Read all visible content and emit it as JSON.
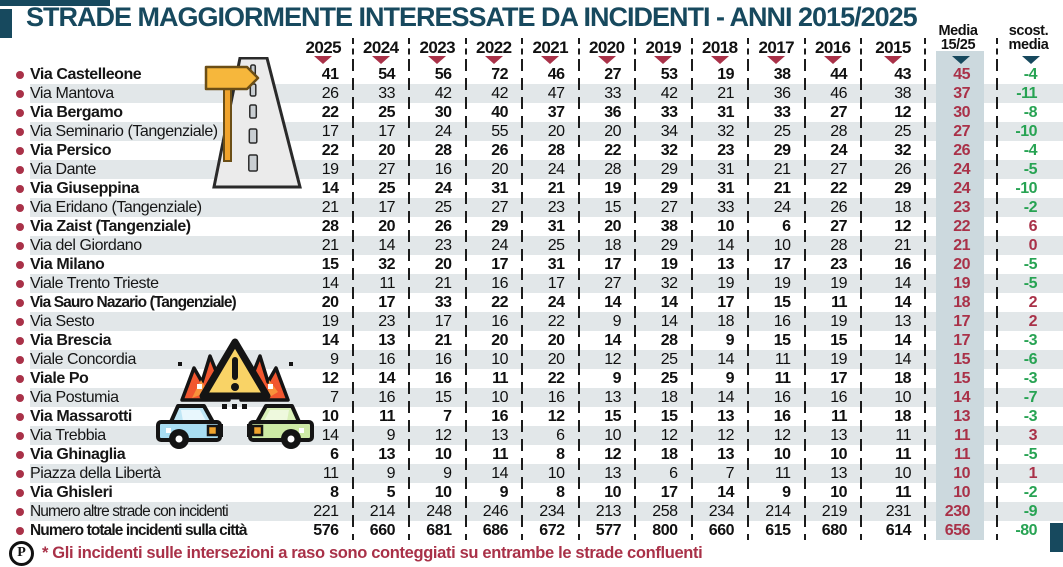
{
  "title": "STRADE MAGGIORMENTE INTERESSATE DA INCIDENTI - ANNI 2015/2025",
  "header": {
    "years": [
      "2025",
      "2024",
      "2023",
      "2022",
      "2021",
      "2020",
      "2019",
      "2018",
      "2017",
      "2016",
      "2015"
    ],
    "media_label": [
      "Media",
      "15/25"
    ],
    "scost_label": [
      "scost.",
      "media"
    ]
  },
  "footnote": {
    "icon": "P",
    "text": "* Gli incidenti sulle intersezioni a raso sono conteggiati su entrambe le strade confluenti"
  },
  "colors": {
    "navy": "#17495e",
    "crimson": "#a93148",
    "green": "#27a353",
    "row_alt": "#e2e7e9",
    "media_column_bg": "#ccd9de"
  },
  "chart_data": {
    "type": "table",
    "title": "STRADE MAGGIORMENTE INTERESSATE DA INCIDENTI - ANNI 2015/2025",
    "columns": [
      "2025",
      "2024",
      "2023",
      "2022",
      "2021",
      "2020",
      "2019",
      "2018",
      "2017",
      "2016",
      "2015",
      "Media 15/25",
      "scost. media"
    ],
    "rows": [
      {
        "name": "Via Castelleone",
        "bold": true,
        "values": [
          41,
          54,
          56,
          72,
          46,
          27,
          53,
          19,
          38,
          44,
          43
        ],
        "media": 45,
        "scost": -4
      },
      {
        "name": "Via Mantova",
        "bold": false,
        "values": [
          26,
          33,
          42,
          42,
          47,
          33,
          42,
          21,
          36,
          46,
          38
        ],
        "media": 37,
        "scost": -11
      },
      {
        "name": "Via Bergamo",
        "bold": true,
        "values": [
          22,
          25,
          30,
          40,
          37,
          36,
          33,
          31,
          33,
          27,
          12
        ],
        "media": 30,
        "scost": -8
      },
      {
        "name": "Via Seminario (Tangenziale)",
        "bold": false,
        "values": [
          17,
          17,
          24,
          55,
          20,
          20,
          34,
          32,
          25,
          28,
          25
        ],
        "media": 27,
        "scost": -10
      },
      {
        "name": "Via Persico",
        "bold": true,
        "values": [
          22,
          20,
          28,
          26,
          28,
          22,
          32,
          23,
          29,
          24,
          32
        ],
        "media": 26,
        "scost": -4
      },
      {
        "name": "Via Dante",
        "bold": false,
        "values": [
          19,
          27,
          16,
          20,
          24,
          28,
          29,
          31,
          21,
          27,
          26
        ],
        "media": 24,
        "scost": -5
      },
      {
        "name": "Via Giuseppina",
        "bold": true,
        "values": [
          14,
          25,
          24,
          31,
          21,
          19,
          29,
          31,
          21,
          22,
          29
        ],
        "media": 24,
        "scost": -10
      },
      {
        "name": "Via Eridano (Tangenziale)",
        "bold": false,
        "values": [
          21,
          17,
          25,
          27,
          23,
          15,
          27,
          33,
          24,
          26,
          18
        ],
        "media": 23,
        "scost": -2
      },
      {
        "name": "Via Zaist (Tangenziale)",
        "bold": true,
        "values": [
          28,
          20,
          26,
          29,
          31,
          20,
          38,
          10,
          6,
          27,
          12
        ],
        "media": 22,
        "scost": 6
      },
      {
        "name": "Via del Giordano",
        "bold": false,
        "values": [
          21,
          14,
          23,
          24,
          25,
          18,
          29,
          14,
          10,
          28,
          21
        ],
        "media": 21,
        "scost": 0
      },
      {
        "name": "Via Milano",
        "bold": true,
        "values": [
          15,
          32,
          20,
          17,
          31,
          17,
          19,
          13,
          17,
          23,
          16
        ],
        "media": 20,
        "scost": -5
      },
      {
        "name": "Viale Trento Trieste",
        "bold": false,
        "values": [
          14,
          11,
          21,
          16,
          17,
          27,
          32,
          19,
          19,
          19,
          14
        ],
        "media": 19,
        "scost": -5
      },
      {
        "name": "Via Sauro Nazario (Tangenziale)",
        "bold": true,
        "values": [
          20,
          17,
          33,
          22,
          24,
          14,
          14,
          17,
          15,
          11,
          14
        ],
        "media": 18,
        "scost": 2
      },
      {
        "name": "Via Sesto",
        "bold": false,
        "values": [
          19,
          23,
          17,
          16,
          22,
          9,
          14,
          18,
          16,
          19,
          13
        ],
        "media": 17,
        "scost": 2
      },
      {
        "name": "Via Brescia",
        "bold": true,
        "values": [
          14,
          13,
          21,
          20,
          20,
          14,
          28,
          9,
          15,
          15,
          14
        ],
        "media": 17,
        "scost": -3
      },
      {
        "name": "Viale Concordia",
        "bold": false,
        "values": [
          9,
          16,
          16,
          10,
          20,
          12,
          25,
          14,
          11,
          19,
          14
        ],
        "media": 15,
        "scost": -6
      },
      {
        "name": "Viale Po",
        "bold": true,
        "values": [
          12,
          14,
          16,
          11,
          22,
          9,
          25,
          9,
          11,
          17,
          18
        ],
        "media": 15,
        "scost": -3
      },
      {
        "name": "Via Postumia",
        "bold": false,
        "values": [
          7,
          16,
          15,
          10,
          16,
          13,
          18,
          14,
          16,
          16,
          10
        ],
        "media": 14,
        "scost": -7
      },
      {
        "name": "Via Massarotti",
        "bold": true,
        "values": [
          10,
          11,
          7,
          16,
          12,
          15,
          15,
          13,
          16,
          11,
          18
        ],
        "media": 13,
        "scost": -3
      },
      {
        "name": "Via Trebbia",
        "bold": false,
        "values": [
          14,
          9,
          12,
          13,
          6,
          10,
          12,
          12,
          12,
          13,
          11
        ],
        "media": 11,
        "scost": 3
      },
      {
        "name": "Via Ghinaglia",
        "bold": true,
        "values": [
          6,
          13,
          10,
          11,
          8,
          12,
          18,
          13,
          10,
          10,
          11
        ],
        "media": 11,
        "scost": -5
      },
      {
        "name": "Piazza della Libertà",
        "bold": false,
        "values": [
          11,
          9,
          9,
          14,
          10,
          13,
          6,
          7,
          11,
          13,
          10
        ],
        "media": 10,
        "scost": 1
      },
      {
        "name": "Via Ghisleri",
        "bold": true,
        "values": [
          8,
          5,
          10,
          9,
          8,
          10,
          17,
          14,
          9,
          10,
          11
        ],
        "media": 10,
        "scost": -2
      },
      {
        "name": "Numero altre strade con incidenti",
        "bold": false,
        "values": [
          221,
          214,
          248,
          246,
          234,
          213,
          258,
          234,
          214,
          219,
          231
        ],
        "media": 230,
        "scost": -9
      },
      {
        "name": "Numero totale incidenti sulla città",
        "bold": true,
        "values": [
          576,
          660,
          681,
          686,
          672,
          577,
          800,
          660,
          615,
          680,
          614
        ],
        "media": 656,
        "scost": -80
      }
    ]
  }
}
